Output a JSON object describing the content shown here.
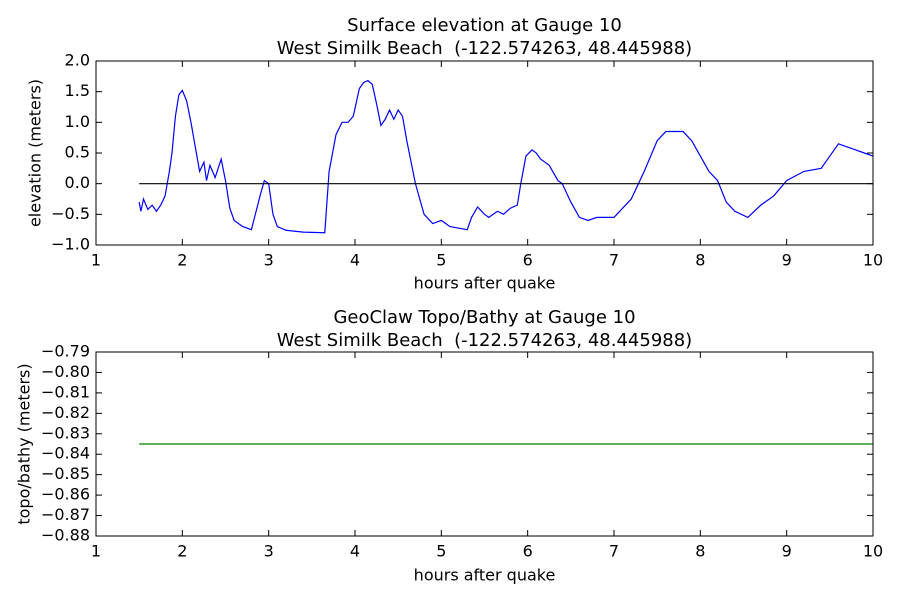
{
  "chart_data": [
    {
      "type": "line",
      "title": "Surface elevation at Gauge 10",
      "subtitle": "West Similk Beach  (-122.574263, 48.445988)",
      "x_label": "hours after quake",
      "y_label": "elevation (meters)",
      "xlim": [
        1,
        10
      ],
      "xticks": [
        1,
        2,
        3,
        4,
        5,
        6,
        7,
        8,
        9,
        10
      ],
      "ylim": [
        -1.0,
        2.0
      ],
      "yticks": [
        {
          "value": -1.0,
          "label": "−1.0"
        },
        {
          "value": -0.5,
          "label": "−0.5"
        },
        {
          "value": 0.0,
          "label": "0.0"
        },
        {
          "value": 0.5,
          "label": "0.5"
        },
        {
          "value": 1.0,
          "label": "1.0"
        },
        {
          "value": 1.5,
          "label": "1.5"
        },
        {
          "value": 2.0,
          "label": "2.0"
        }
      ],
      "series": [
        {
          "color": "#0000ff",
          "x": [
            1.5,
            1.52,
            1.55,
            1.6,
            1.65,
            1.7,
            1.75,
            1.8,
            1.85,
            1.88,
            1.92,
            1.96,
            2.0,
            2.05,
            2.1,
            2.15,
            2.2,
            2.25,
            2.28,
            2.32,
            2.38,
            2.45,
            2.5,
            2.55,
            2.6,
            2.7,
            2.8,
            2.9,
            2.95,
            3.0,
            3.05,
            3.1,
            3.2,
            3.4,
            3.65,
            3.7,
            3.78,
            3.85,
            3.92,
            3.98,
            4.05,
            4.1,
            4.15,
            4.2,
            4.25,
            4.3,
            4.35,
            4.4,
            4.45,
            4.5,
            4.55,
            4.6,
            4.7,
            4.8,
            4.9,
            5.0,
            5.1,
            5.3,
            5.35,
            5.42,
            5.5,
            5.55,
            5.65,
            5.72,
            5.8,
            5.88,
            5.92,
            5.98,
            6.05,
            6.1,
            6.15,
            6.25,
            6.35,
            6.4,
            6.5,
            6.6,
            6.7,
            6.8,
            7.0,
            7.1,
            7.2,
            7.35,
            7.5,
            7.6,
            7.7,
            7.8,
            7.9,
            8.0,
            8.1,
            8.2,
            8.3,
            8.4,
            8.55,
            8.7,
            8.85,
            9.0,
            9.2,
            9.4,
            9.5,
            9.6,
            9.8,
            9.9,
            10.0
          ],
          "values": [
            -0.3,
            -0.45,
            -0.25,
            -0.42,
            -0.35,
            -0.45,
            -0.35,
            -0.2,
            0.2,
            0.5,
            1.1,
            1.45,
            1.52,
            1.35,
            1.0,
            0.6,
            0.2,
            0.35,
            0.05,
            0.3,
            0.1,
            0.4,
            0.05,
            -0.4,
            -0.6,
            -0.7,
            -0.75,
            -0.2,
            0.05,
            0.0,
            -0.5,
            -0.7,
            -0.76,
            -0.79,
            -0.8,
            0.2,
            0.8,
            1.0,
            1.0,
            1.1,
            1.55,
            1.65,
            1.68,
            1.62,
            1.3,
            0.95,
            1.05,
            1.2,
            1.05,
            1.2,
            1.1,
            0.7,
            0.0,
            -0.5,
            -0.65,
            -0.6,
            -0.7,
            -0.75,
            -0.55,
            -0.38,
            -0.5,
            -0.55,
            -0.45,
            -0.5,
            -0.4,
            -0.35,
            0.0,
            0.45,
            0.55,
            0.5,
            0.4,
            0.3,
            0.05,
            0.0,
            -0.3,
            -0.55,
            -0.6,
            -0.55,
            -0.55,
            -0.4,
            -0.25,
            0.2,
            0.7,
            0.85,
            0.85,
            0.85,
            0.7,
            0.45,
            0.2,
            0.05,
            -0.3,
            -0.45,
            -0.55,
            -0.35,
            -0.2,
            0.05,
            0.2,
            0.25,
            0.45,
            0.65,
            0.55,
            0.5,
            0.45
          ]
        },
        {
          "color": "#000000",
          "x": [
            1.5,
            10
          ],
          "values": [
            0,
            0
          ]
        }
      ]
    },
    {
      "type": "line",
      "title": "GeoClaw Topo/Bathy at Gauge 10",
      "subtitle": "West Similk Beach  (-122.574263, 48.445988)",
      "x_label": "hours after quake",
      "y_label": "topo/bathy (meters)",
      "xlim": [
        1,
        10
      ],
      "xticks": [
        1,
        2,
        3,
        4,
        5,
        6,
        7,
        8,
        9,
        10
      ],
      "ylim": [
        -0.88,
        -0.79
      ],
      "yticks": [
        {
          "value": -0.88,
          "label": "−0.88"
        },
        {
          "value": -0.87,
          "label": "−0.87"
        },
        {
          "value": -0.86,
          "label": "−0.86"
        },
        {
          "value": -0.85,
          "label": "−0.85"
        },
        {
          "value": -0.84,
          "label": "−0.84"
        },
        {
          "value": -0.83,
          "label": "−0.83"
        },
        {
          "value": -0.82,
          "label": "−0.82"
        },
        {
          "value": -0.81,
          "label": "−0.81"
        },
        {
          "value": -0.8,
          "label": "−0.80"
        },
        {
          "value": -0.79,
          "label": "−0.79"
        }
      ],
      "series": [
        {
          "color": "#008000",
          "x": [
            1.5,
            10
          ],
          "values": [
            -0.835,
            -0.835
          ]
        }
      ]
    }
  ]
}
